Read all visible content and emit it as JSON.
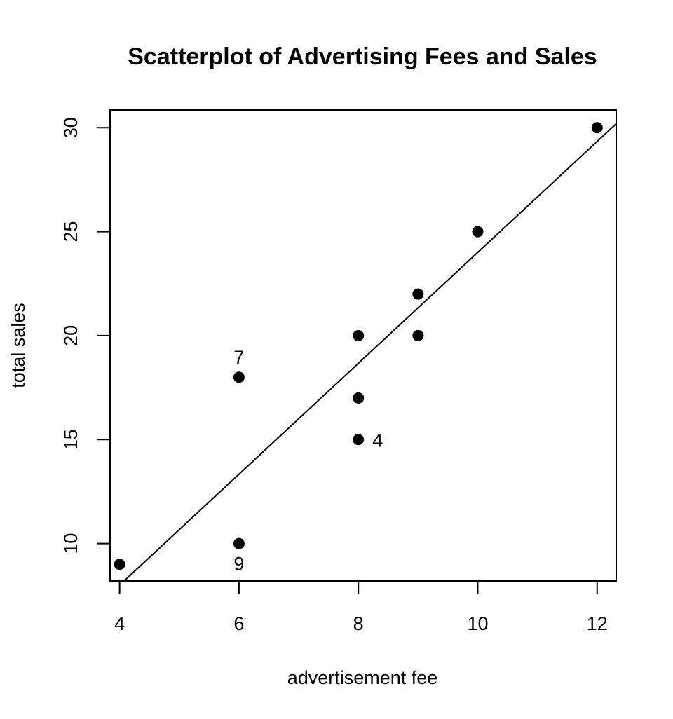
{
  "chart_data": {
    "type": "scatter",
    "title": "Scatterplot of Advertising Fees and Sales",
    "xlabel": "advertisement fee",
    "ylabel": "total sales",
    "xlim": [
      3.84,
      12.32
    ],
    "ylim": [
      8.2,
      30.85
    ],
    "xticks": [
      4,
      6,
      8,
      10,
      12
    ],
    "yticks": [
      10,
      15,
      20,
      25,
      30
    ],
    "grid": false,
    "points": [
      {
        "x": 4,
        "y": 9
      },
      {
        "x": 6,
        "y": 10
      },
      {
        "x": 6,
        "y": 18
      },
      {
        "x": 8,
        "y": 15
      },
      {
        "x": 8,
        "y": 17
      },
      {
        "x": 8,
        "y": 20
      },
      {
        "x": 9,
        "y": 20
      },
      {
        "x": 9,
        "y": 22
      },
      {
        "x": 10,
        "y": 25
      },
      {
        "x": 12,
        "y": 30
      }
    ],
    "annotations": [
      {
        "text": "7",
        "x": 6,
        "y": 18,
        "position": "above"
      },
      {
        "text": "4",
        "x": 8,
        "y": 15,
        "position": "right"
      },
      {
        "text": "9",
        "x": 6,
        "y": 10,
        "position": "below"
      }
    ],
    "fit_line": {
      "intercept": -2.667,
      "slope": 2.667
    }
  }
}
